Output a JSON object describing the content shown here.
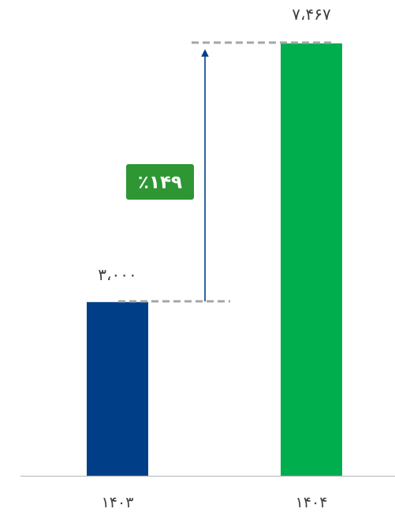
{
  "colors": {
    "bar_1403": "#003F87",
    "bar_1404": "#00AE4D",
    "badge": "#2E9633",
    "arrow": "#003F87",
    "guide": "#A6A6A6",
    "axis": "#BFBFBF",
    "text": "#404040",
    "badge_text": "#ffffff"
  },
  "chart_data": {
    "type": "bar",
    "categories": [
      "۱۴۰۳",
      "۱۴۰۴"
    ],
    "values": [
      3000,
      7467
    ],
    "value_labels": [
      "۳،۰۰۰",
      "۷،۴۶۷"
    ],
    "growth_label": "٪۱۴۹",
    "growth_percent": 149,
    "ylim": [
      0,
      7467
    ],
    "grid": false,
    "legend": "none",
    "title": "",
    "xlabel": "",
    "ylabel": ""
  }
}
